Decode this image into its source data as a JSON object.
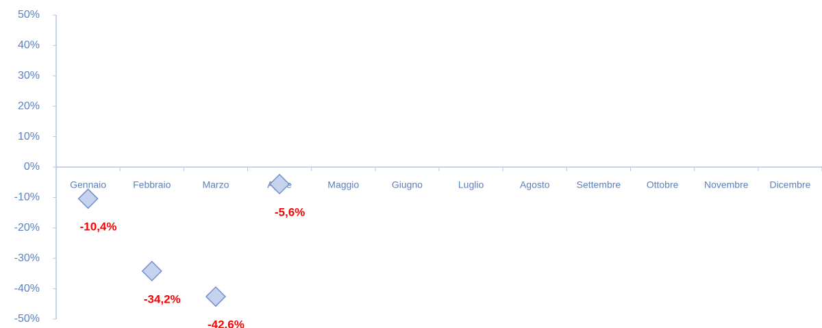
{
  "chart_data": {
    "type": "scatter",
    "categories": [
      "Gennaio",
      "Febbraio",
      "Marzo",
      "Aprile",
      "Maggio",
      "Giugno",
      "Luglio",
      "Agosto",
      "Settembre",
      "Ottobre",
      "Novembre",
      "Dicembre"
    ],
    "series": [
      {
        "color": "#c5d3ee",
        "values": [
          -10.4,
          -34.2,
          -42.6,
          -5.6,
          null,
          null,
          null,
          null,
          null,
          null,
          null,
          null
        ],
        "value_labels": [
          "-10,4%",
          "-34,2%",
          "-42,6%",
          "-5,6%",
          null,
          null,
          null,
          null,
          null,
          null,
          null,
          null
        ]
      }
    ],
    "ylim": [
      -50,
      50
    ],
    "yticks": [
      {
        "value": -50,
        "label": "-50%"
      },
      {
        "value": -40,
        "label": "-40%"
      },
      {
        "value": -30,
        "label": "-30%"
      },
      {
        "value": -20,
        "label": "-20%"
      },
      {
        "value": -10,
        "label": "-10%"
      },
      {
        "value": 0,
        "label": "0%"
      },
      {
        "value": 10,
        "label": "10%"
      },
      {
        "value": 20,
        "label": "20%"
      },
      {
        "value": 30,
        "label": "30%"
      },
      {
        "value": 40,
        "label": "40%"
      },
      {
        "value": 50,
        "label": "50%"
      }
    ],
    "grid": false
  }
}
